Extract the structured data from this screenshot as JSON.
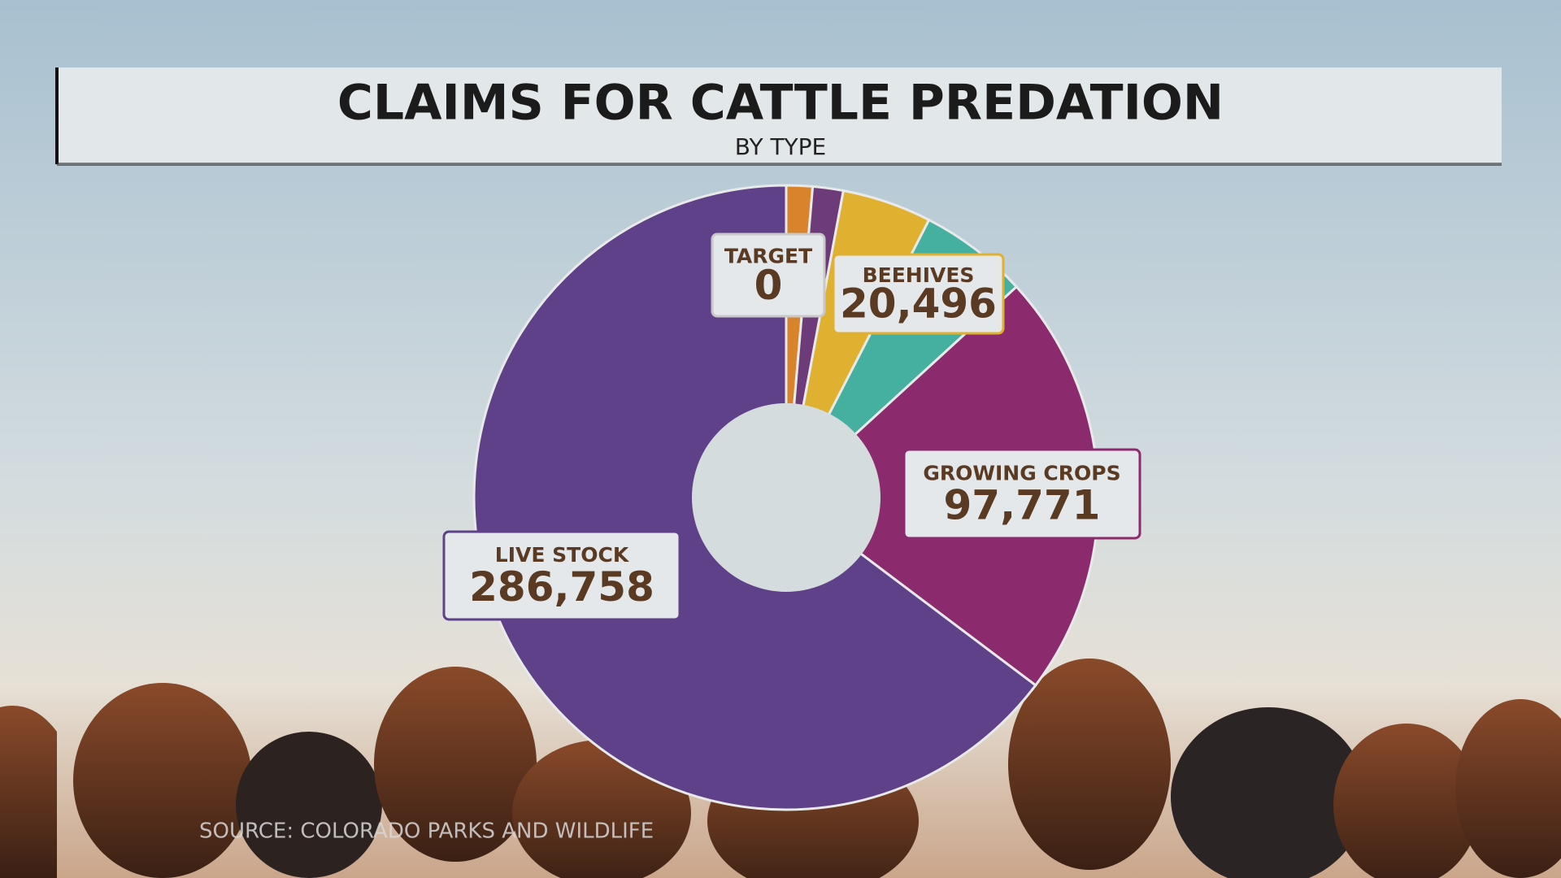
{
  "chart_data": {
    "type": "donut",
    "title": "CLAIMS FOR CATTLE PREDATION",
    "subtitle": "BY TYPE",
    "source": "SOURCE: COLORADO PARKS AND WILDLIFE",
    "categories": [
      "TARGET",
      null,
      null,
      "BEEHIVES",
      null,
      "GROWING CROPS",
      "LIVE STOCK"
    ],
    "values": [
      0,
      6000,
      7000,
      20496,
      25000,
      97771,
      286758
    ],
    "value_labels": [
      "0",
      null,
      null,
      "20,496",
      null,
      "97,771",
      "286,758"
    ],
    "colors": [
      "#d9832a",
      "#d9832a",
      "#6e3b7a",
      "#e0b030",
      "#45b0a0",
      "#8c2a6e",
      "#5f4189"
    ]
  }
}
